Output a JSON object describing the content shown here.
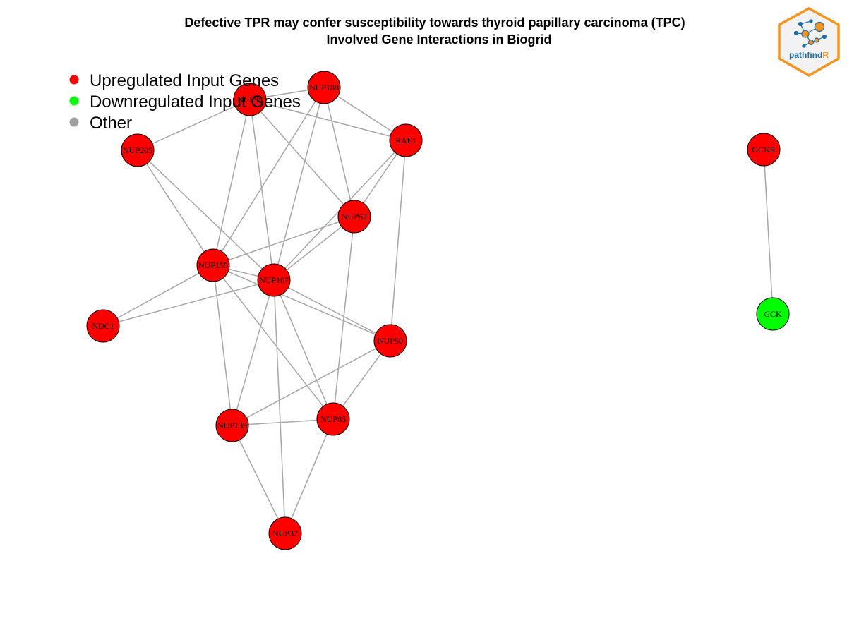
{
  "title": {
    "line1": "Defective TPR may confer susceptibility towards thyroid papillary carcinoma (TPC)",
    "line2": "Involved Gene Interactions in Biogrid"
  },
  "legend": [
    {
      "label": "Upregulated Input Genes",
      "color": "#ff0000"
    },
    {
      "label": "Downregulated Input Genes",
      "color": "#00ff00"
    },
    {
      "label": "Other",
      "color": "#a0a0a0"
    }
  ],
  "logo": {
    "text_main": "pathfind",
    "text_accent": "R",
    "border_color": "#f7941d",
    "text_color": "#1f6fa5"
  },
  "colors": {
    "up": "#ff0000",
    "down": "#00ff00",
    "edge": "#a6a6a6"
  },
  "nodes": [
    {
      "id": "NUP98",
      "status": "up"
    },
    {
      "id": "NUP188",
      "status": "up"
    },
    {
      "id": "RAE1",
      "status": "up"
    },
    {
      "id": "NUP205",
      "status": "up"
    },
    {
      "id": "NUP62",
      "status": "up"
    },
    {
      "id": "NUP155",
      "status": "up"
    },
    {
      "id": "NUP107",
      "status": "up"
    },
    {
      "id": "NDC1",
      "status": "up"
    },
    {
      "id": "NUP50",
      "status": "up"
    },
    {
      "id": "NUP133",
      "status": "up"
    },
    {
      "id": "NUP85",
      "status": "up"
    },
    {
      "id": "NUP37",
      "status": "up"
    },
    {
      "id": "GCKR",
      "status": "up"
    },
    {
      "id": "GCK",
      "status": "down"
    }
  ],
  "edges": [
    [
      "NUP98",
      "NUP188"
    ],
    [
      "NUP98",
      "NUP205"
    ],
    [
      "NUP98",
      "RAE1"
    ],
    [
      "NUP98",
      "NUP62"
    ],
    [
      "NUP98",
      "NUP155"
    ],
    [
      "NUP98",
      "NUP107"
    ],
    [
      "NUP188",
      "RAE1"
    ],
    [
      "NUP188",
      "NUP62"
    ],
    [
      "NUP188",
      "NUP155"
    ],
    [
      "NUP188",
      "NUP107"
    ],
    [
      "NUP205",
      "NUP155"
    ],
    [
      "NUP205",
      "NUP107"
    ],
    [
      "RAE1",
      "NUP62"
    ],
    [
      "RAE1",
      "NUP107"
    ],
    [
      "RAE1",
      "NUP50"
    ],
    [
      "NUP62",
      "NUP155"
    ],
    [
      "NUP62",
      "NUP107"
    ],
    [
      "NUP62",
      "NUP85"
    ],
    [
      "NUP155",
      "NUP107"
    ],
    [
      "NUP155",
      "NDC1"
    ],
    [
      "NUP155",
      "NUP50"
    ],
    [
      "NUP155",
      "NUP133"
    ],
    [
      "NUP155",
      "NUP85"
    ],
    [
      "NUP107",
      "NDC1"
    ],
    [
      "NUP107",
      "NUP50"
    ],
    [
      "NUP107",
      "NUP133"
    ],
    [
      "NUP107",
      "NUP85"
    ],
    [
      "NUP107",
      "NUP37"
    ],
    [
      "NUP50",
      "NUP133"
    ],
    [
      "NUP50",
      "NUP85"
    ],
    [
      "NUP133",
      "NUP85"
    ],
    [
      "NUP133",
      "NUP37"
    ],
    [
      "NUP85",
      "NUP37"
    ],
    [
      "GCKR",
      "GCK"
    ]
  ]
}
